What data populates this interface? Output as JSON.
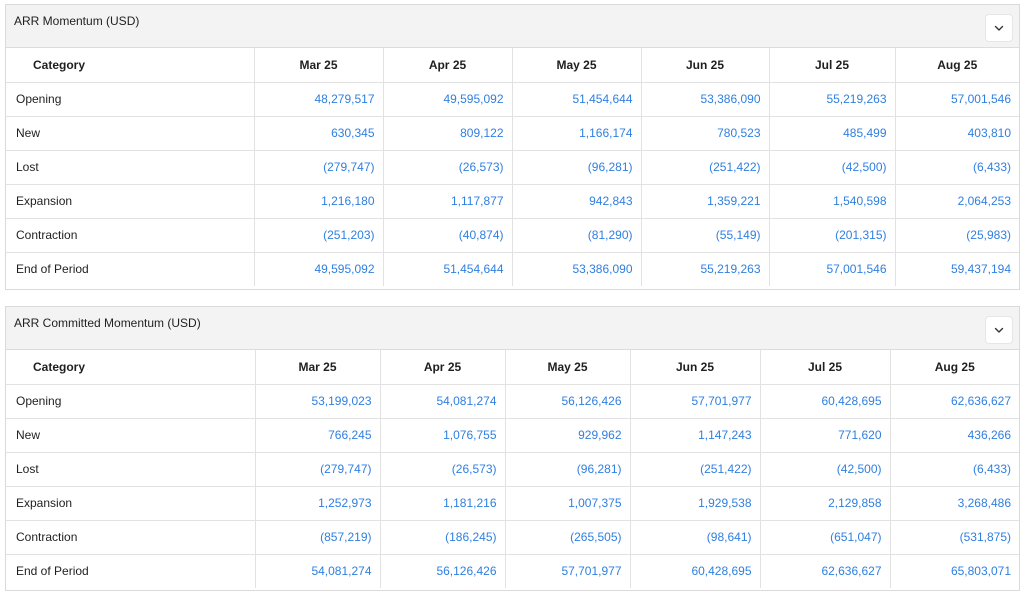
{
  "tables": [
    {
      "title": "ARR Momentum (USD)",
      "category_header": "Category",
      "columns": [
        "Mar 25",
        "Apr 25",
        "May 25",
        "Jun 25",
        "Jul 25",
        "Aug 25"
      ],
      "rows": [
        {
          "category": "Opening",
          "values": [
            "48,279,517",
            "49,595,092",
            "51,454,644",
            "53,386,090",
            "55,219,263",
            "57,001,546"
          ]
        },
        {
          "category": "New",
          "values": [
            "630,345",
            "809,122",
            "1,166,174",
            "780,523",
            "485,499",
            "403,810"
          ]
        },
        {
          "category": "Lost",
          "values": [
            "(279,747)",
            "(26,573)",
            "(96,281)",
            "(251,422)",
            "(42,500)",
            "(6,433)"
          ]
        },
        {
          "category": "Expansion",
          "values": [
            "1,216,180",
            "1,117,877",
            "942,843",
            "1,359,221",
            "1,540,598",
            "2,064,253"
          ]
        },
        {
          "category": "Contraction",
          "values": [
            "(251,203)",
            "(40,874)",
            "(81,290)",
            "(55,149)",
            "(201,315)",
            "(25,983)"
          ]
        },
        {
          "category": "End of Period",
          "values": [
            "49,595,092",
            "51,454,644",
            "53,386,090",
            "55,219,263",
            "57,001,546",
            "59,437,194"
          ]
        }
      ]
    },
    {
      "title": "ARR Committed Momentum (USD)",
      "category_header": "Category",
      "columns": [
        "Mar 25",
        "Apr 25",
        "May 25",
        "Jun 25",
        "Jul 25",
        "Aug 25"
      ],
      "rows": [
        {
          "category": "Opening",
          "values": [
            "53,199,023",
            "54,081,274",
            "56,126,426",
            "57,701,977",
            "60,428,695",
            "62,636,627"
          ]
        },
        {
          "category": "New",
          "values": [
            "766,245",
            "1,076,755",
            "929,962",
            "1,147,243",
            "771,620",
            "436,266"
          ]
        },
        {
          "category": "Lost",
          "values": [
            "(279,747)",
            "(26,573)",
            "(96,281)",
            "(251,422)",
            "(42,500)",
            "(6,433)"
          ]
        },
        {
          "category": "Expansion",
          "values": [
            "1,252,973",
            "1,181,216",
            "1,007,375",
            "1,929,538",
            "2,129,858",
            "3,268,486"
          ]
        },
        {
          "category": "Contraction",
          "values": [
            "(857,219)",
            "(186,245)",
            "(265,505)",
            "(98,641)",
            "(651,047)",
            "(531,875)"
          ]
        },
        {
          "category": "End of Period",
          "values": [
            "54,081,274",
            "56,126,426",
            "57,701,977",
            "60,428,695",
            "62,636,627",
            "65,803,071"
          ]
        }
      ]
    }
  ],
  "icons": {
    "collapse": "chevron-down-icon"
  },
  "colors": {
    "value_link": "#2f7fe0",
    "header_bg": "#f3f3f3",
    "border": "#e2e2e2"
  }
}
